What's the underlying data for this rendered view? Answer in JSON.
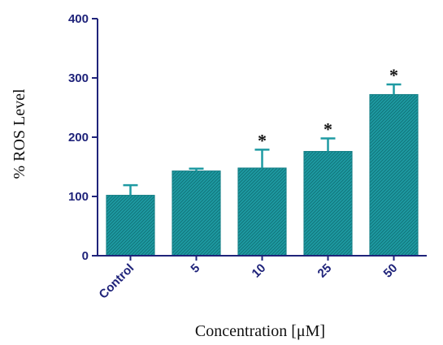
{
  "chart_data": {
    "type": "bar",
    "title": "",
    "xlabel": "Concentration [μM]",
    "ylabel": "% ROS Level",
    "ylim": [
      0,
      400
    ],
    "yticks": [
      0,
      100,
      200,
      300,
      400
    ],
    "categories": [
      "Control",
      "5",
      "10",
      "25",
      "50"
    ],
    "values": [
      102,
      143,
      148,
      176,
      272
    ],
    "errors": [
      17,
      4,
      31,
      22,
      17
    ],
    "significance": [
      "",
      "",
      "*",
      "*",
      "*"
    ],
    "grid": false,
    "bar_color": "#1e9aa2",
    "axis_color": "#1f237a"
  }
}
